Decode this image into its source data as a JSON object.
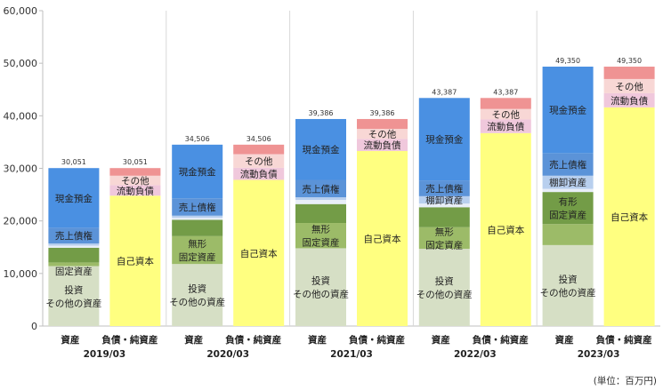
{
  "chart_data": {
    "type": "bar",
    "stacked": true,
    "ylim": [
      0,
      60000
    ],
    "yticks": [
      "0",
      "10,000",
      "20,000",
      "30,000",
      "40,000",
      "50,000",
      "60,000"
    ],
    "grid": "vertical-separators",
    "unit": "(単位：百万円)",
    "bar_labels": {
      "assets": "資産",
      "liabilities": "負債・純資産"
    },
    "periods": [
      {
        "period": "2019/03",
        "total_label": "30,051",
        "assets": [
          {
            "key": "investments",
            "value": 11400,
            "label": "投資\nその他の資産"
          },
          {
            "key": "intangible",
            "value": 700,
            "label": "無形\n固定資産"
          },
          {
            "key": "tangible",
            "value": 2800,
            "label": ""
          },
          {
            "key": "other_current",
            "value": 400,
            "label": ""
          },
          {
            "key": "inventory",
            "value": 400,
            "label": ""
          },
          {
            "key": "receivables",
            "value": 3000,
            "label": "売上債権"
          },
          {
            "key": "cash",
            "value": 11351,
            "label": "現金預金"
          }
        ],
        "liabilities": [
          {
            "key": "equity",
            "value": 24800,
            "label": "自己資本"
          },
          {
            "key": "current_liab",
            "value": 2000,
            "label": "流動負債"
          },
          {
            "key": "other_current_liab",
            "value": 1800,
            "label": "その他"
          },
          {
            "key": "fixed_liab",
            "value": 1451,
            "label": ""
          }
        ]
      },
      {
        "period": "2020/03",
        "total_label": "34,506",
        "assets": [
          {
            "key": "investments",
            "value": 11800,
            "label": "投資\nその他の資産"
          },
          {
            "key": "intangible",
            "value": 5300,
            "label": "無形\n固定資産"
          },
          {
            "key": "tangible",
            "value": 3100,
            "label": ""
          },
          {
            "key": "other_current",
            "value": 400,
            "label": ""
          },
          {
            "key": "inventory",
            "value": 400,
            "label": ""
          },
          {
            "key": "receivables",
            "value": 3300,
            "label": "売上債権"
          },
          {
            "key": "cash",
            "value": 10206,
            "label": "現金預金"
          }
        ],
        "liabilities": [
          {
            "key": "equity",
            "value": 27800,
            "label": "自己資本"
          },
          {
            "key": "current_liab",
            "value": 2300,
            "label": "流動負債"
          },
          {
            "key": "other_current_liab",
            "value": 2600,
            "label": "その他"
          },
          {
            "key": "fixed_liab",
            "value": 1806,
            "label": ""
          }
        ]
      },
      {
        "period": "2021/03",
        "total_label": "39,386",
        "assets": [
          {
            "key": "investments",
            "value": 14800,
            "label": "投資\nその他の資産"
          },
          {
            "key": "intangible",
            "value": 4800,
            "label": "無形\n固定資産"
          },
          {
            "key": "tangible",
            "value": 3600,
            "label": ""
          },
          {
            "key": "other_current",
            "value": 800,
            "label": ""
          },
          {
            "key": "inventory",
            "value": 500,
            "label": ""
          },
          {
            "key": "receivables",
            "value": 3300,
            "label": "売上債権"
          },
          {
            "key": "cash",
            "value": 11586,
            "label": "現金預金"
          }
        ],
        "liabilities": [
          {
            "key": "equity",
            "value": 33300,
            "label": "自己資本"
          },
          {
            "key": "current_liab",
            "value": 2300,
            "label": "流動負債"
          },
          {
            "key": "other_current_liab",
            "value": 1900,
            "label": "その他"
          },
          {
            "key": "fixed_liab",
            "value": 1886,
            "label": ""
          }
        ]
      },
      {
        "period": "2022/03",
        "total_label": "43,387",
        "assets": [
          {
            "key": "investments",
            "value": 14700,
            "label": "投資\nその他の資産"
          },
          {
            "key": "intangible",
            "value": 4100,
            "label": "無形\n固定資産"
          },
          {
            "key": "tangible",
            "value": 3800,
            "label": ""
          },
          {
            "key": "other_current",
            "value": 700,
            "label": ""
          },
          {
            "key": "inventory",
            "value": 1400,
            "label": "棚卸資産"
          },
          {
            "key": "receivables",
            "value": 3000,
            "label": "売上債権"
          },
          {
            "key": "cash",
            "value": 15687,
            "label": "現金預金"
          }
        ],
        "liabilities": [
          {
            "key": "equity",
            "value": 36700,
            "label": "自己資本"
          },
          {
            "key": "current_liab",
            "value": 2600,
            "label": "流動負債"
          },
          {
            "key": "other_current_liab",
            "value": 2000,
            "label": "その他"
          },
          {
            "key": "fixed_liab",
            "value": 2087,
            "label": ""
          }
        ]
      },
      {
        "period": "2023/03",
        "total_label": "49,350",
        "assets": [
          {
            "key": "investments",
            "value": 15400,
            "label": "投資\nその他の資産"
          },
          {
            "key": "intangible",
            "value": 4000,
            "label": ""
          },
          {
            "key": "tangible",
            "value": 6100,
            "label": "有形\n固定資産"
          },
          {
            "key": "other_current",
            "value": 600,
            "label": ""
          },
          {
            "key": "inventory",
            "value": 2500,
            "label": "棚卸資産"
          },
          {
            "key": "receivables",
            "value": 4300,
            "label": "売上債権"
          },
          {
            "key": "cash",
            "value": 16450,
            "label": "現金預金"
          }
        ],
        "liabilities": [
          {
            "key": "equity",
            "value": 41600,
            "label": "自己資本"
          },
          {
            "key": "current_liab",
            "value": 2700,
            "label": "流動負債"
          },
          {
            "key": "other_current_liab",
            "value": 2700,
            "label": "その他"
          },
          {
            "key": "fixed_liab",
            "value": 2350,
            "label": ""
          }
        ]
      }
    ],
    "colors": {
      "investments": "#d6dfc5",
      "intangible": "#9cbb68",
      "tangible": "#739c47",
      "other_current": "#e8eef8",
      "inventory": "#b8cfee",
      "receivables": "#5b93d8",
      "cash": "#4a90e2",
      "equity": "#ffff80",
      "current_liab": "#f0c8dc",
      "other_current_liab": "#f8d7d5",
      "fixed_liab": "#ef9393"
    }
  }
}
